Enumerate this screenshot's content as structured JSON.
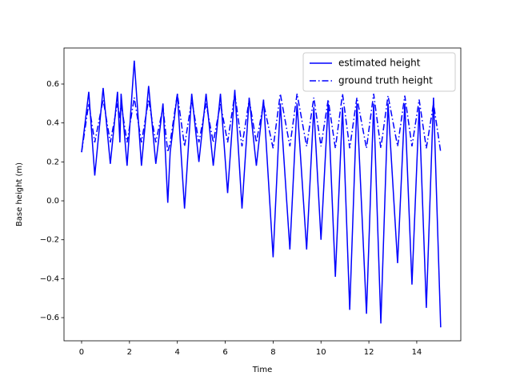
{
  "chart_data": {
    "type": "line",
    "x_label": "Time",
    "y_label": "Base height (m)",
    "x": [
      0,
      0.3,
      0.55,
      0.9,
      1.2,
      1.5,
      1.6,
      1.65,
      1.9,
      2.2,
      2.5,
      2.8,
      3.1,
      3.4,
      3.6,
      3.7,
      4.0,
      4.3,
      4.6,
      4.9,
      5.2,
      5.5,
      5.8,
      6.1,
      6.4,
      6.7,
      7.0,
      7.3,
      7.6,
      8.0,
      8.3,
      8.7,
      9.0,
      9.4,
      9.7,
      10.0,
      10.3,
      10.6,
      10.9,
      11.2,
      11.5,
      11.9,
      12.2,
      12.5,
      12.8,
      13.2,
      13.5,
      13.8,
      14.1,
      14.4,
      14.7,
      15.0
    ],
    "series": [
      {
        "name": "estimated height",
        "color": "#0000ff",
        "style": "solid",
        "values": [
          0.25,
          0.56,
          0.13,
          0.58,
          0.19,
          0.56,
          0.3,
          0.55,
          0.18,
          0.72,
          0.18,
          0.59,
          0.19,
          0.5,
          -0.01,
          0.25,
          0.55,
          -0.04,
          0.55,
          0.2,
          0.55,
          0.18,
          0.55,
          0.04,
          0.57,
          -0.04,
          0.53,
          0.18,
          0.52,
          -0.29,
          0.5,
          -0.25,
          0.5,
          -0.25,
          0.48,
          -0.2,
          0.5,
          -0.39,
          0.48,
          -0.56,
          0.5,
          -0.58,
          0.5,
          -0.63,
          0.5,
          -0.32,
          0.5,
          -0.43,
          0.48,
          -0.55,
          0.53,
          -0.65
        ]
      },
      {
        "name": "ground truth height",
        "color": "#0000ff",
        "style": "dashdot",
        "values": [
          0.25,
          0.5,
          0.3,
          0.52,
          0.3,
          0.5,
          0.42,
          0.5,
          0.3,
          0.53,
          0.3,
          0.52,
          0.3,
          0.48,
          0.25,
          0.3,
          0.55,
          0.28,
          0.52,
          0.3,
          0.5,
          0.3,
          0.5,
          0.3,
          0.55,
          0.28,
          0.52,
          0.3,
          0.5,
          0.27,
          0.55,
          0.28,
          0.55,
          0.28,
          0.53,
          0.28,
          0.52,
          0.27,
          0.55,
          0.27,
          0.53,
          0.27,
          0.55,
          0.27,
          0.54,
          0.28,
          0.54,
          0.28,
          0.52,
          0.27,
          0.5,
          0.25
        ]
      }
    ],
    "xlim": [
      -0.735,
      15.84
    ],
    "ylim": [
      -0.719,
      0.785
    ],
    "xticks": [
      0,
      2,
      4,
      6,
      8,
      10,
      12,
      14
    ],
    "yticks": [
      {
        "value": -0.6,
        "label": "−0.6"
      },
      {
        "value": -0.4,
        "label": "−0.4"
      },
      {
        "value": -0.2,
        "label": "−0.2"
      },
      {
        "value": 0,
        "label": "0.0"
      },
      0.2,
      0.4,
      0.6
    ],
    "legend": "upper right",
    "grid": false
  }
}
